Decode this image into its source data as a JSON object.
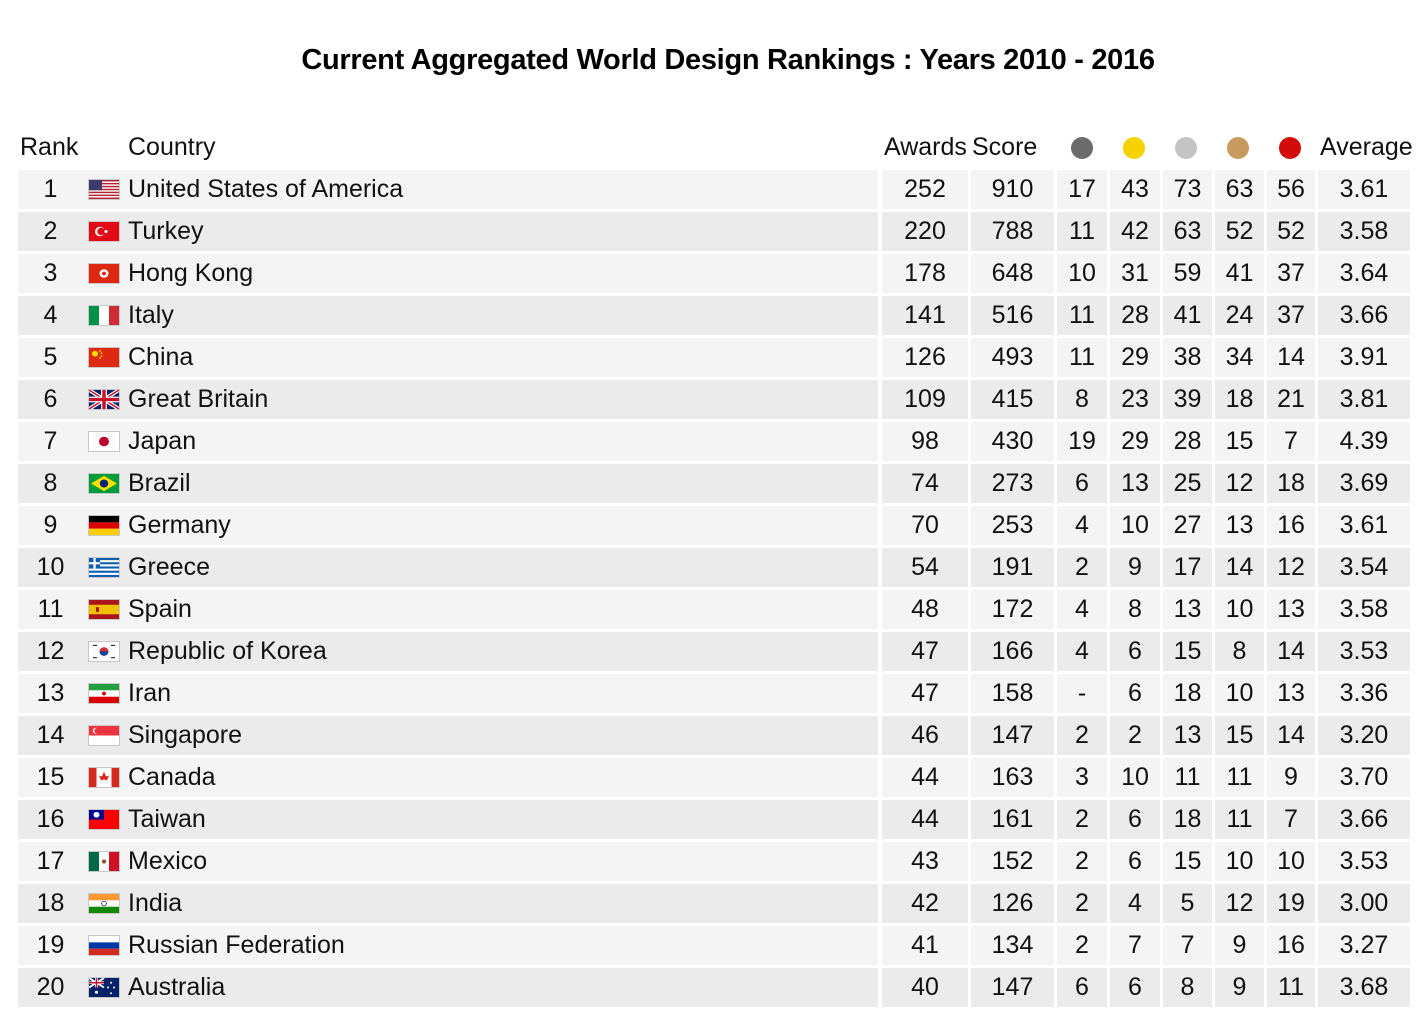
{
  "title": "Current Aggregated World Design Rankings : Years 2010 - 2016",
  "headers": {
    "rank": "Rank",
    "country": "Country",
    "awards": "Awards",
    "score": "Score",
    "average": "Average"
  },
  "medal_colors": {
    "platinum": "#6b6b6b",
    "gold": "#f5d200",
    "silver": "#c4c4c4",
    "bronze": "#c99a5e",
    "red": "#d20a0a"
  },
  "rows": [
    {
      "rank": "1",
      "country": "United States of America",
      "flag": "us-flag-icon",
      "awards": "252",
      "score": "910",
      "platinum": "17",
      "gold": "43",
      "silver": "73",
      "bronze": "63",
      "red": "56",
      "average": "3.61"
    },
    {
      "rank": "2",
      "country": "Turkey",
      "flag": "tr-flag-icon",
      "awards": "220",
      "score": "788",
      "platinum": "11",
      "gold": "42",
      "silver": "63",
      "bronze": "52",
      "red": "52",
      "average": "3.58"
    },
    {
      "rank": "3",
      "country": "Hong Kong",
      "flag": "hk-flag-icon",
      "awards": "178",
      "score": "648",
      "platinum": "10",
      "gold": "31",
      "silver": "59",
      "bronze": "41",
      "red": "37",
      "average": "3.64"
    },
    {
      "rank": "4",
      "country": "Italy",
      "flag": "it-flag-icon",
      "awards": "141",
      "score": "516",
      "platinum": "11",
      "gold": "28",
      "silver": "41",
      "bronze": "24",
      "red": "37",
      "average": "3.66"
    },
    {
      "rank": "5",
      "country": "China",
      "flag": "cn-flag-icon",
      "awards": "126",
      "score": "493",
      "platinum": "11",
      "gold": "29",
      "silver": "38",
      "bronze": "34",
      "red": "14",
      "average": "3.91"
    },
    {
      "rank": "6",
      "country": "Great Britain",
      "flag": "gb-flag-icon",
      "awards": "109",
      "score": "415",
      "platinum": "8",
      "gold": "23",
      "silver": "39",
      "bronze": "18",
      "red": "21",
      "average": "3.81"
    },
    {
      "rank": "7",
      "country": "Japan",
      "flag": "jp-flag-icon",
      "awards": "98",
      "score": "430",
      "platinum": "19",
      "gold": "29",
      "silver": "28",
      "bronze": "15",
      "red": "7",
      "average": "4.39"
    },
    {
      "rank": "8",
      "country": "Brazil",
      "flag": "br-flag-icon",
      "awards": "74",
      "score": "273",
      "platinum": "6",
      "gold": "13",
      "silver": "25",
      "bronze": "12",
      "red": "18",
      "average": "3.69"
    },
    {
      "rank": "9",
      "country": "Germany",
      "flag": "de-flag-icon",
      "awards": "70",
      "score": "253",
      "platinum": "4",
      "gold": "10",
      "silver": "27",
      "bronze": "13",
      "red": "16",
      "average": "3.61"
    },
    {
      "rank": "10",
      "country": "Greece",
      "flag": "gr-flag-icon",
      "awards": "54",
      "score": "191",
      "platinum": "2",
      "gold": "9",
      "silver": "17",
      "bronze": "14",
      "red": "12",
      "average": "3.54"
    },
    {
      "rank": "11",
      "country": "Spain",
      "flag": "es-flag-icon",
      "awards": "48",
      "score": "172",
      "platinum": "4",
      "gold": "8",
      "silver": "13",
      "bronze": "10",
      "red": "13",
      "average": "3.58"
    },
    {
      "rank": "12",
      "country": "Republic of Korea",
      "flag": "kr-flag-icon",
      "awards": "47",
      "score": "166",
      "platinum": "4",
      "gold": "6",
      "silver": "15",
      "bronze": "8",
      "red": "14",
      "average": "3.53"
    },
    {
      "rank": "13",
      "country": "Iran",
      "flag": "ir-flag-icon",
      "awards": "47",
      "score": "158",
      "platinum": "-",
      "gold": "6",
      "silver": "18",
      "bronze": "10",
      "red": "13",
      "average": "3.36"
    },
    {
      "rank": "14",
      "country": "Singapore",
      "flag": "sg-flag-icon",
      "awards": "46",
      "score": "147",
      "platinum": "2",
      "gold": "2",
      "silver": "13",
      "bronze": "15",
      "red": "14",
      "average": "3.20"
    },
    {
      "rank": "15",
      "country": "Canada",
      "flag": "ca-flag-icon",
      "awards": "44",
      "score": "163",
      "platinum": "3",
      "gold": "10",
      "silver": "11",
      "bronze": "11",
      "red": "9",
      "average": "3.70"
    },
    {
      "rank": "16",
      "country": "Taiwan",
      "flag": "tw-flag-icon",
      "awards": "44",
      "score": "161",
      "platinum": "2",
      "gold": "6",
      "silver": "18",
      "bronze": "11",
      "red": "7",
      "average": "3.66"
    },
    {
      "rank": "17",
      "country": "Mexico",
      "flag": "mx-flag-icon",
      "awards": "43",
      "score": "152",
      "platinum": "2",
      "gold": "6",
      "silver": "15",
      "bronze": "10",
      "red": "10",
      "average": "3.53"
    },
    {
      "rank": "18",
      "country": "India",
      "flag": "in-flag-icon",
      "awards": "42",
      "score": "126",
      "platinum": "2",
      "gold": "4",
      "silver": "5",
      "bronze": "12",
      "red": "19",
      "average": "3.00"
    },
    {
      "rank": "19",
      "country": "Russian Federation",
      "flag": "ru-flag-icon",
      "awards": "41",
      "score": "134",
      "platinum": "2",
      "gold": "7",
      "silver": "7",
      "bronze": "9",
      "red": "16",
      "average": "3.27"
    },
    {
      "rank": "20",
      "country": "Australia",
      "flag": "au-flag-icon",
      "awards": "40",
      "score": "147",
      "platinum": "6",
      "gold": "6",
      "silver": "8",
      "bronze": "9",
      "red": "11",
      "average": "3.68"
    }
  ]
}
